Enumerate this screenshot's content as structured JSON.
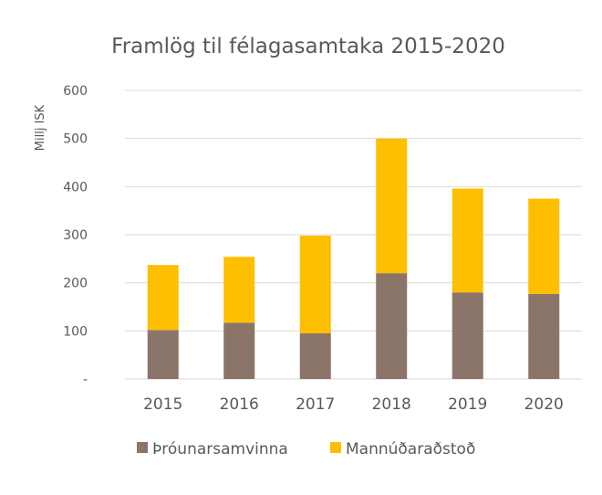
{
  "chart_data": {
    "type": "bar",
    "stacked": true,
    "title": "Framlög til félagasamtaka 2015-2020",
    "xlabel": "",
    "ylabel": "Millj ISK",
    "categories": [
      "2015",
      "2016",
      "2017",
      "2018",
      "2019",
      "2020"
    ],
    "ylim": [
      0,
      600
    ],
    "yticks": [
      {
        "value": 0,
        "label": "-"
      },
      {
        "value": 100,
        "label": "100"
      },
      {
        "value": 200,
        "label": "200"
      },
      {
        "value": 300,
        "label": "300"
      },
      {
        "value": 400,
        "label": "400"
      },
      {
        "value": 500,
        "label": "500"
      },
      {
        "value": 600,
        "label": "600"
      }
    ],
    "grid": true,
    "legend_position": "bottom",
    "series": [
      {
        "name": "Þróunarsamvinna",
        "color": "#8b7468",
        "values": [
          102,
          117,
          95,
          220,
          180,
          177
        ]
      },
      {
        "name": "Mannúðaraðstoð",
        "color": "#fdbf00",
        "values": [
          135,
          137,
          203,
          280,
          216,
          198
        ]
      }
    ]
  }
}
